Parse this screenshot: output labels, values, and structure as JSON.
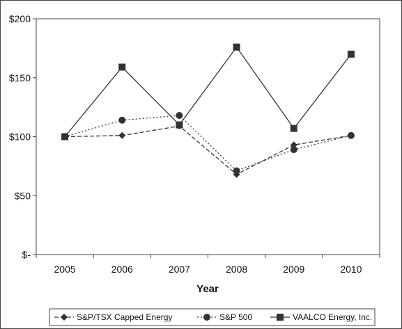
{
  "chart_data": {
    "type": "line",
    "title": "",
    "xlabel": "Year",
    "ylabel": "",
    "categories": [
      "2005",
      "2006",
      "2007",
      "2008",
      "2009",
      "2010"
    ],
    "y_tick_labels": [
      "$-",
      "$50",
      "$100",
      "$150",
      "$200"
    ],
    "y_tick_values": [
      0,
      50,
      100,
      150,
      200
    ],
    "ylim": [
      0,
      200
    ],
    "grid": false,
    "legend_position": "bottom",
    "series": [
      {
        "name": "S&P/TSX Capped Energy",
        "marker": "diamond",
        "line": "dashed",
        "values": [
          100,
          101,
          109,
          68,
          93,
          101
        ]
      },
      {
        "name": "S&P 500",
        "marker": "circle",
        "line": "dotted",
        "values": [
          100,
          114,
          118,
          71,
          89,
          101
        ]
      },
      {
        "name": "VAALCO Energy, Inc.",
        "marker": "square",
        "line": "solid",
        "values": [
          100,
          159,
          110,
          176,
          107,
          170
        ]
      }
    ]
  }
}
